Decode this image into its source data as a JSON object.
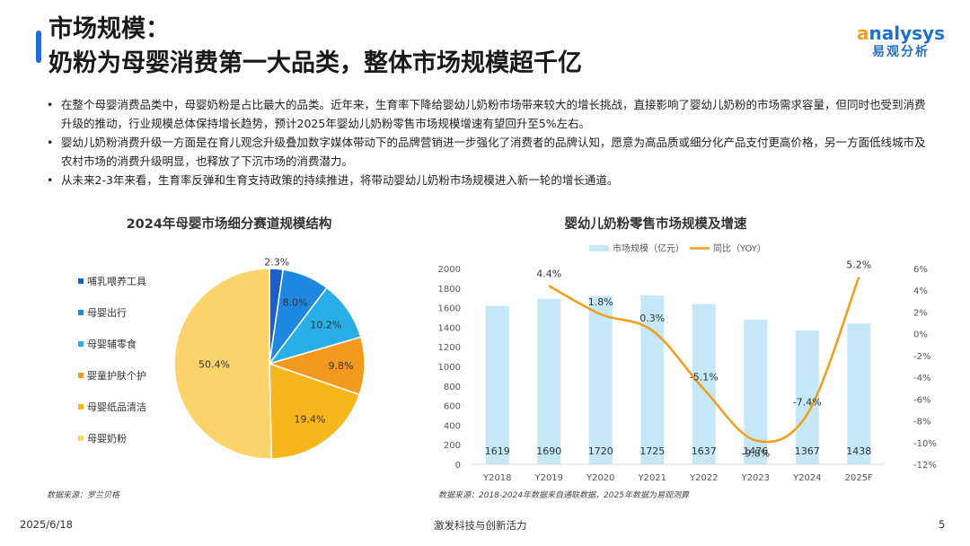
{
  "header": {
    "title_line1": "市场规模：",
    "title_line2": "奶粉为母婴消费第一大品类，整体市场规模超千亿",
    "logo_text": "nalysys",
    "logo_cn": "易观分析"
  },
  "bullets": [
    "在整个母婴消费品类中，母婴奶粉是占比最大的品类。近年来，生育率下降给婴幼儿奶粉市场带来较大的增长挑战，直接影响了婴幼儿奶粉的市场需求容量，但同时也受到消费升级的推动，行业规模总体保持增长趋势，预计2025年婴幼儿奶粉零售市场规模增速有望回升至5%左右。",
    "婴幼儿奶粉消费升级一方面是在育儿观念升级叠加数字媒体带动下的品牌营销进一步强化了消费者的品牌认知，愿意为高品质或细分化产品支付更高价格，另一方面低线城市及农村市场的消费升级明显，也释放了下沉市场的消费潜力。",
    "从未来2-3年来看，生育率反弹和生育支持政策的持续推进，将带动婴幼儿奶粉市场规模进入新一轮的增长通道。"
  ],
  "pie_chart": {
    "title": "2024年母婴市场细分赛道规模结构",
    "source": "数据来源：罗兰贝格"
  },
  "combo_chart": {
    "title": "婴幼儿奶粉零售市场规模及增速",
    "source": "数据来源：2018-2024年数据来自通联数据，2025年数据为易观测算"
  },
  "footer": {
    "date": "2025/6/18",
    "slogan": "激发科技与创新活力",
    "page": "5"
  },
  "chart_data": [
    {
      "type": "pie",
      "title": "2024年母婴市场细分赛道规模结构",
      "categories": [
        "哺乳喂养工具",
        "母婴出行",
        "母婴辅零食",
        "婴童护肤个护",
        "母婴纸品清洁",
        "母婴奶粉"
      ],
      "values": [
        2.3,
        8.0,
        10.2,
        9.8,
        19.4,
        50.4
      ],
      "labels": [
        "2.3%",
        "8.0%",
        "10.2%",
        "9.8%",
        "19.4%",
        "50.4%"
      ],
      "colors": [
        "#1a5fc9",
        "#1e88e0",
        "#2aaee8",
        "#f39a1e",
        "#f7b71c",
        "#fcd36b"
      ],
      "legend_position": "left"
    },
    {
      "type": "bar",
      "title": "婴幼儿奶粉零售市场规模及增速",
      "categories": [
        "Y2018",
        "Y2019",
        "Y2020",
        "Y2021",
        "Y2022",
        "Y2023",
        "Y2024",
        "2025F"
      ],
      "series": [
        {
          "name": "市场规模（亿元）",
          "type": "bar",
          "axis": "left",
          "values": [
            1619,
            1690,
            1720,
            1725,
            1637,
            1476,
            1367,
            1438
          ],
          "labels": [
            "1619",
            "1690",
            "1720",
            "1725",
            "1637",
            "1476",
            "1367",
            "1438"
          ],
          "color": "#c5e8f8"
        },
        {
          "name": "同比（YOY）",
          "type": "line",
          "axis": "right",
          "values": [
            null,
            4.4,
            1.8,
            0.3,
            -5.1,
            -9.8,
            -7.4,
            5.2
          ],
          "labels": [
            "",
            "4.4%",
            "1.8%",
            "0.3%",
            "-5.1%",
            "-9.8%",
            "-7.4%",
            "5.2%"
          ],
          "color": "#f29c1a"
        }
      ],
      "ylim": [
        0,
        2000
      ],
      "yticks": [
        "0",
        "200",
        "400",
        "600",
        "800",
        "1000",
        "1200",
        "1400",
        "1600",
        "1800",
        "2000"
      ],
      "y2lim": [
        -12,
        6
      ],
      "y2ticks": [
        "-12%",
        "-10%",
        "-8%",
        "-6%",
        "-4%",
        "-2%",
        "0%",
        "2%",
        "4%",
        "6%"
      ],
      "legend_position": "top",
      "grid": false
    }
  ]
}
